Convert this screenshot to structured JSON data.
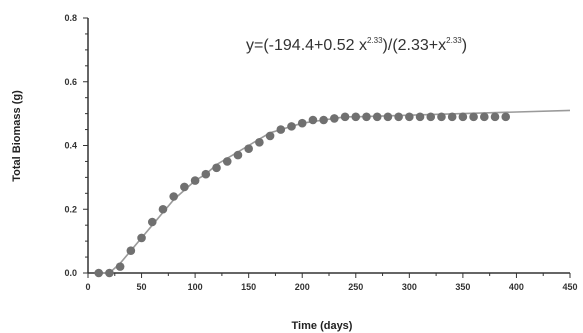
{
  "chart_data": {
    "type": "scatter",
    "xlabel": "Time (days)",
    "ylabel": "Total Biomass (g)",
    "xlim": [
      0,
      450
    ],
    "ylim": [
      0,
      0.8
    ],
    "x_ticks": [
      0,
      50,
      100,
      150,
      200,
      250,
      300,
      350,
      400,
      450
    ],
    "y_ticks": [
      0.0,
      0.2,
      0.4,
      0.6,
      0.8
    ],
    "grid": false,
    "annotation": {
      "prefix": "y=(-194.4+0.52 x",
      "exp1": "2.33",
      "middle": ")/(2.33+x",
      "exp2": "2.33",
      "suffix": ")"
    },
    "series": [
      {
        "kind": "observed",
        "color": "#707070",
        "x": [
          10,
          20,
          30,
          40,
          50,
          60,
          70,
          80,
          90,
          100,
          110,
          120,
          130,
          140,
          150,
          160,
          170,
          180,
          190,
          200,
          210,
          220,
          230,
          240,
          250,
          260,
          270,
          280,
          290,
          300,
          310,
          320,
          330,
          340,
          350,
          360,
          370,
          380,
          390
        ],
        "y": [
          0.0,
          0.0,
          0.02,
          0.07,
          0.11,
          0.16,
          0.2,
          0.24,
          0.27,
          0.29,
          0.31,
          0.33,
          0.35,
          0.37,
          0.39,
          0.41,
          0.43,
          0.45,
          0.46,
          0.47,
          0.48,
          0.48,
          0.485,
          0.49,
          0.49,
          0.49,
          0.49,
          0.49,
          0.49,
          0.49,
          0.49,
          0.49,
          0.49,
          0.49,
          0.49,
          0.49,
          0.49,
          0.49,
          0.49
        ]
      },
      {
        "kind": "fitted",
        "color": "#9a9a9a",
        "x": [
          10,
          20,
          30,
          40,
          50,
          60,
          70,
          80,
          90,
          100,
          110,
          120,
          130,
          140,
          150,
          160,
          170,
          180,
          190,
          200,
          210,
          220,
          230,
          240,
          250,
          300,
          350,
          400,
          450
        ],
        "y": [
          0.0,
          0.0,
          0.03,
          0.07,
          0.11,
          0.15,
          0.19,
          0.23,
          0.26,
          0.29,
          0.31,
          0.34,
          0.36,
          0.38,
          0.4,
          0.42,
          0.44,
          0.45,
          0.46,
          0.47,
          0.475,
          0.48,
          0.485,
          0.49,
          0.49,
          0.495,
          0.5,
          0.505,
          0.51
        ]
      }
    ]
  }
}
